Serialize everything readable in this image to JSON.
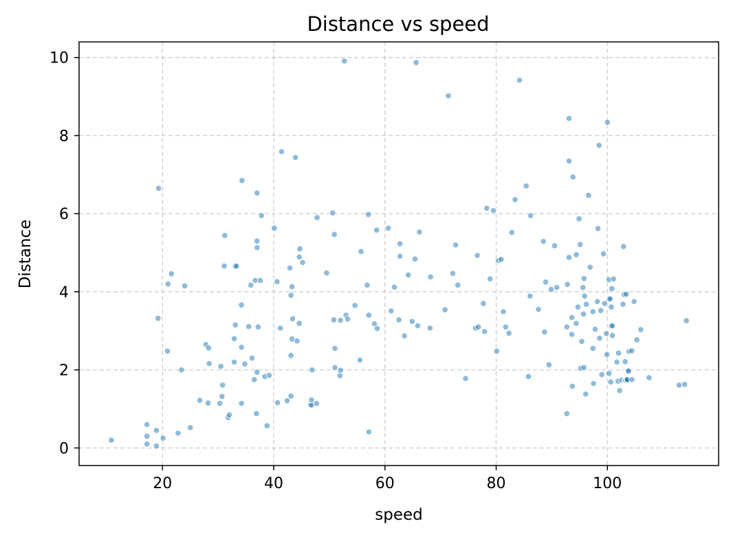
{
  "chart_data": {
    "type": "scatter",
    "title": "Distance vs speed",
    "xlabel": "speed",
    "ylabel": "Distance",
    "xlim": [
      5,
      120
    ],
    "ylim": [
      -0.45,
      10.4
    ],
    "xticks": [
      20,
      40,
      60,
      80,
      100
    ],
    "yticks": [
      0,
      2,
      4,
      6,
      8,
      10
    ],
    "grid": true,
    "point_color": "#1f77b4",
    "point_opacity": 0.5,
    "points": [
      [
        10.8,
        0.2
      ],
      [
        17.2,
        0.6
      ],
      [
        17.2,
        0.3
      ],
      [
        17.2,
        0.1
      ],
      [
        18.9,
        0.45
      ],
      [
        18.9,
        0.05
      ],
      [
        19.3,
        6.65
      ],
      [
        19.2,
        3.32
      ],
      [
        20.1,
        0.25
      ],
      [
        20.9,
        2.48
      ],
      [
        21.0,
        4.2
      ],
      [
        21.6,
        4.46
      ],
      [
        22.8,
        0.38
      ],
      [
        23.4,
        2.0
      ],
      [
        24.0,
        4.15
      ],
      [
        25.0,
        0.52
      ],
      [
        26.7,
        1.22
      ],
      [
        27.8,
        2.65
      ],
      [
        28.2,
        1.15
      ],
      [
        28.3,
        2.56
      ],
      [
        28.4,
        2.16
      ],
      [
        30.3,
        1.14
      ],
      [
        30.5,
        2.09
      ],
      [
        30.7,
        1.32
      ],
      [
        30.8,
        1.61
      ],
      [
        31.1,
        4.66
      ],
      [
        31.2,
        5.44
      ],
      [
        31.8,
        0.78
      ],
      [
        32.0,
        0.85
      ],
      [
        32.9,
        2.8
      ],
      [
        32.9,
        2.2
      ],
      [
        33.1,
        3.15
      ],
      [
        33.1,
        4.65
      ],
      [
        33.3,
        4.66
      ],
      [
        34.3,
        6.85
      ],
      [
        34.2,
        3.66
      ],
      [
        34.2,
        2.58
      ],
      [
        34.2,
        1.14
      ],
      [
        34.8,
        2.15
      ],
      [
        35.5,
        3.11
      ],
      [
        35.9,
        4.17
      ],
      [
        36.1,
        2.3
      ],
      [
        36.5,
        1.75
      ],
      [
        36.7,
        4.29
      ],
      [
        37.0,
        6.53
      ],
      [
        37.0,
        5.3
      ],
      [
        37.0,
        5.13
      ],
      [
        37.2,
        3.1
      ],
      [
        37.0,
        1.94
      ],
      [
        36.9,
        0.88
      ],
      [
        37.6,
        4.29
      ],
      [
        37.8,
        5.95
      ],
      [
        38.4,
        1.83
      ],
      [
        38.8,
        0.57
      ],
      [
        39.2,
        1.86
      ],
      [
        40.1,
        5.63
      ],
      [
        40.6,
        4.26
      ],
      [
        40.7,
        1.16
      ],
      [
        41.2,
        3.07
      ],
      [
        41.4,
        7.59
      ],
      [
        42.4,
        1.21
      ],
      [
        42.9,
        4.61
      ],
      [
        43.1,
        2.37
      ],
      [
        43.1,
        1.33
      ],
      [
        43.1,
        3.91
      ],
      [
        43.3,
        4.13
      ],
      [
        43.3,
        2.79
      ],
      [
        43.4,
        3.31
      ],
      [
        43.9,
        7.44
      ],
      [
        44.2,
        2.74
      ],
      [
        44.6,
        3.19
      ],
      [
        44.6,
        4.89
      ],
      [
        44.7,
        5.1
      ],
      [
        45.2,
        4.75
      ],
      [
        46.6,
        1.11
      ],
      [
        46.8,
        1.1
      ],
      [
        46.9,
        2.0
      ],
      [
        46.8,
        1.23
      ],
      [
        47.7,
        1.14
      ],
      [
        47.8,
        5.9
      ],
      [
        49.5,
        4.48
      ],
      [
        50.6,
        6.02
      ],
      [
        50.8,
        3.28
      ],
      [
        50.9,
        5.47
      ],
      [
        51.0,
        2.06
      ],
      [
        51.0,
        2.55
      ],
      [
        51.9,
        1.85
      ],
      [
        52.0,
        1.99
      ],
      [
        52.0,
        3.27
      ],
      [
        52.7,
        9.91
      ],
      [
        53.0,
        3.4
      ],
      [
        53.3,
        3.3
      ],
      [
        54.6,
        3.65
      ],
      [
        55.5,
        2.25
      ],
      [
        55.7,
        5.03
      ],
      [
        56.8,
        4.17
      ],
      [
        57.0,
        5.98
      ],
      [
        57.1,
        3.4
      ],
      [
        57.1,
        0.41
      ],
      [
        58.1,
        3.18
      ],
      [
        58.5,
        5.58
      ],
      [
        58.6,
        3.06
      ],
      [
        60.6,
        5.63
      ],
      [
        61.1,
        3.51
      ],
      [
        61.7,
        4.12
      ],
      [
        62.5,
        3.28
      ],
      [
        62.7,
        5.23
      ],
      [
        62.7,
        4.91
      ],
      [
        63.5,
        2.87
      ],
      [
        64.2,
        4.43
      ],
      [
        64.9,
        3.24
      ],
      [
        65.4,
        4.84
      ],
      [
        65.6,
        9.87
      ],
      [
        65.9,
        3.13
      ],
      [
        66.2,
        5.53
      ],
      [
        68.1,
        3.07
      ],
      [
        68.2,
        4.38
      ],
      [
        70.8,
        3.54
      ],
      [
        71.4,
        9.02
      ],
      [
        72.2,
        4.47
      ],
      [
        72.7,
        5.2
      ],
      [
        73.1,
        4.17
      ],
      [
        74.5,
        1.78
      ],
      [
        76.3,
        3.07
      ],
      [
        76.6,
        4.93
      ],
      [
        76.8,
        3.1
      ],
      [
        77.7,
        3.7
      ],
      [
        77.9,
        2.98
      ],
      [
        78.3,
        6.14
      ],
      [
        78.9,
        4.33
      ],
      [
        79.5,
        6.08
      ],
      [
        80.1,
        2.48
      ],
      [
        80.4,
        4.8
      ],
      [
        80.9,
        4.83
      ],
      [
        81.3,
        3.49
      ],
      [
        81.7,
        3.1
      ],
      [
        82.3,
        2.94
      ],
      [
        82.8,
        5.52
      ],
      [
        83.4,
        6.36
      ],
      [
        84.2,
        9.42
      ],
      [
        85.4,
        6.71
      ],
      [
        85.8,
        1.83
      ],
      [
        86.1,
        3.89
      ],
      [
        86.2,
        5.95
      ],
      [
        87.6,
        3.55
      ],
      [
        88.5,
        5.29
      ],
      [
        88.7,
        2.97
      ],
      [
        88.9,
        4.25
      ],
      [
        89.5,
        2.13
      ],
      [
        89.9,
        4.06
      ],
      [
        90.5,
        5.18
      ],
      [
        90.9,
        4.11
      ],
      [
        92.7,
        0.88
      ],
      [
        92.7,
        3.1
      ],
      [
        92.8,
        4.19
      ],
      [
        93.1,
        8.44
      ],
      [
        93.1,
        7.35
      ],
      [
        93.1,
        4.88
      ],
      [
        93.6,
        3.34
      ],
      [
        93.6,
        2.91
      ],
      [
        93.7,
        1.58
      ],
      [
        93.8,
        6.94
      ],
      [
        94.4,
        3.19
      ],
      [
        94.4,
        4.95
      ],
      [
        94.7,
        3.61
      ],
      [
        94.9,
        5.87
      ],
      [
        95.1,
        5.21
      ],
      [
        95.2,
        2.04
      ],
      [
        95.4,
        2.73
      ],
      [
        95.6,
        4.11
      ],
      [
        95.7,
        3.43
      ],
      [
        95.8,
        2.06
      ],
      [
        95.8,
        4.34
      ],
      [
        95.9,
        3.89
      ],
      [
        96.1,
        1.38
      ],
      [
        96.2,
        3.68
      ],
      [
        96.6,
        6.47
      ],
      [
        96.9,
        4.63
      ],
      [
        97.4,
        3.49
      ],
      [
        97.4,
        2.55
      ],
      [
        97.5,
        1.65
      ],
      [
        97.8,
        3.04
      ],
      [
        98.2,
        3.75
      ],
      [
        98.3,
        5.62
      ],
      [
        98.5,
        7.75
      ],
      [
        98.6,
        2.81
      ],
      [
        98.8,
        3.52
      ],
      [
        99.0,
        1.88
      ],
      [
        99.3,
        4.97
      ],
      [
        99.5,
        3.7
      ],
      [
        99.8,
        2.93
      ],
      [
        99.9,
        2.39
      ],
      [
        100.0,
        8.34
      ],
      [
        100.3,
        4.31
      ],
      [
        100.3,
        3.81
      ],
      [
        100.3,
        1.91
      ],
      [
        100.5,
        3.82
      ],
      [
        100.6,
        1.69
      ],
      [
        100.7,
        3.12
      ],
      [
        100.7,
        3.61
      ],
      [
        100.8,
        4.08
      ],
      [
        100.9,
        2.88
      ],
      [
        100.9,
        3.13
      ],
      [
        101.1,
        4.33
      ],
      [
        101.7,
        2.2
      ],
      [
        101.9,
        1.71
      ],
      [
        102.0,
        2.43
      ],
      [
        102.2,
        1.47
      ],
      [
        102.6,
        1.74
      ],
      [
        102.8,
        3.68
      ],
      [
        102.9,
        5.16
      ],
      [
        103.0,
        3.93
      ],
      [
        103.2,
        2.21
      ],
      [
        103.2,
        1.73
      ],
      [
        103.3,
        1.73
      ],
      [
        103.4,
        3.94
      ],
      [
        103.5,
        1.74
      ],
      [
        103.6,
        1.75
      ],
      [
        103.7,
        1.98
      ],
      [
        103.8,
        1.97
      ],
      [
        103.9,
        2.47
      ],
      [
        104.4,
        2.49
      ],
      [
        104.4,
        1.75
      ],
      [
        104.8,
        3.75
      ],
      [
        105.3,
        2.77
      ],
      [
        106.0,
        3.03
      ],
      [
        107.5,
        1.8
      ],
      [
        112.9,
        1.61
      ],
      [
        114.2,
        3.26
      ],
      [
        113.9,
        1.63
      ]
    ]
  }
}
